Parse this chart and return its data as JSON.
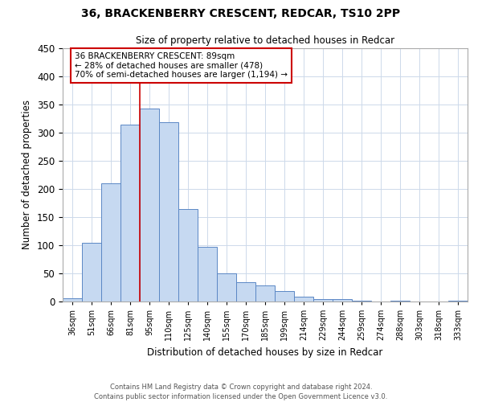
{
  "title": "36, BRACKENBERRY CRESCENT, REDCAR, TS10 2PP",
  "subtitle": "Size of property relative to detached houses in Redcar",
  "xlabel": "Distribution of detached houses by size in Redcar",
  "ylabel": "Number of detached properties",
  "categories": [
    "36sqm",
    "51sqm",
    "66sqm",
    "81sqm",
    "95sqm",
    "110sqm",
    "125sqm",
    "140sqm",
    "155sqm",
    "170sqm",
    "185sqm",
    "199sqm",
    "214sqm",
    "229sqm",
    "244sqm",
    "259sqm",
    "274sqm",
    "288sqm",
    "303sqm",
    "318sqm",
    "333sqm"
  ],
  "values": [
    6,
    105,
    210,
    315,
    343,
    318,
    165,
    97,
    50,
    35,
    29,
    18,
    9,
    5,
    4,
    2,
    0,
    1,
    0,
    0,
    1
  ],
  "bar_color": "#c6d9f1",
  "bar_edge_color": "#5b87c5",
  "ylim": [
    0,
    450
  ],
  "yticks": [
    0,
    50,
    100,
    150,
    200,
    250,
    300,
    350,
    400,
    450
  ],
  "property_line_color": "#cc0000",
  "annotation_title": "36 BRACKENBERRY CRESCENT: 89sqm",
  "annotation_line1": "← 28% of detached houses are smaller (478)",
  "annotation_line2": "70% of semi-detached houses are larger (1,194) →",
  "annotation_box_color": "#cc0000",
  "footer_line1": "Contains HM Land Registry data © Crown copyright and database right 2024.",
  "footer_line2": "Contains public sector information licensed under the Open Government Licence v3.0.",
  "background_color": "#ffffff",
  "grid_color": "#cdd9ea"
}
